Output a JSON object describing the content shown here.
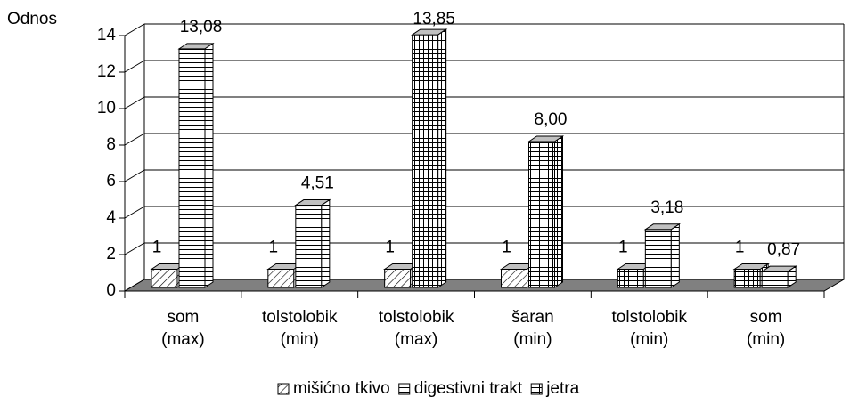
{
  "chart_data": {
    "type": "bar3d",
    "y_axis_label": "Odnos",
    "categories": [
      [
        "som",
        "(max)"
      ],
      [
        "tolstolobik",
        "(min)"
      ],
      [
        "tolstolobik",
        "(max)"
      ],
      [
        "šaran",
        "(min)"
      ],
      [
        "tolstolobik",
        "(min)"
      ],
      [
        "som",
        "(min)"
      ]
    ],
    "series": [
      {
        "name": "mišićno tkivo",
        "pattern": "diagonal",
        "values": [
          1,
          1,
          1,
          1,
          null,
          null
        ],
        "value_labels": [
          "1",
          "1",
          "1",
          "1",
          null,
          null
        ]
      },
      {
        "name": "digestivni trakt",
        "pattern": "hlines",
        "values": [
          13.08,
          4.51,
          null,
          null,
          3.18,
          0.87
        ],
        "value_labels": [
          "13,08",
          "4,51",
          null,
          null,
          "3,18",
          "0,87"
        ]
      },
      {
        "name": "jetra",
        "pattern": "grid",
        "values": [
          null,
          null,
          13.85,
          8.0,
          1,
          1
        ],
        "value_labels": [
          null,
          null,
          "13,85",
          "8,00",
          "1",
          "1"
        ]
      }
    ],
    "ylim": [
      0,
      14
    ],
    "yticks": [
      0,
      2,
      4,
      6,
      8,
      10,
      12,
      14
    ],
    "grid": true,
    "legend": "bottom"
  }
}
